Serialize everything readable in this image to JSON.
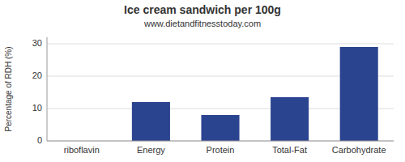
{
  "chart_data": {
    "type": "bar",
    "title": "Ice cream sandwich per 100g",
    "subtitle": "www.dietandfitnesstoday.com",
    "categories": [
      "riboflavin",
      "Energy",
      "Protein",
      "Total-Fat",
      "Carbohydrate"
    ],
    "values": [
      0,
      12,
      8,
      13.5,
      29
    ],
    "color": "#2b4490",
    "ylabel": "Percentage of RDH (%)",
    "ylim": [
      0,
      32
    ],
    "yticks": [
      0,
      10,
      20,
      30
    ],
    "grid": true
  }
}
